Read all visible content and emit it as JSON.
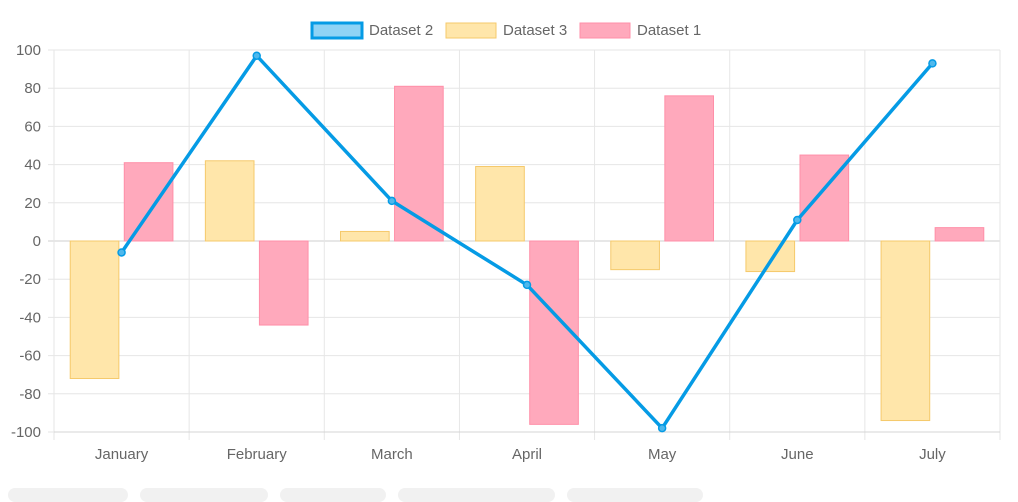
{
  "chart_data": {
    "type": "bar",
    "categories": [
      "January",
      "February",
      "March",
      "April",
      "May",
      "June",
      "July"
    ],
    "series": [
      {
        "name": "Dataset 2",
        "type": "line",
        "color": "#059BE5",
        "values": [
          -6,
          97,
          21,
          -23,
          -98,
          11,
          93
        ]
      },
      {
        "name": "Dataset 3",
        "type": "bar",
        "color": "#FFE6AA",
        "border": "#F5C96B",
        "values": [
          -72,
          42,
          5,
          39,
          -15,
          -16,
          -94
        ]
      },
      {
        "name": "Dataset 1",
        "type": "bar",
        "color": "#FFA9BC",
        "border": "#FF8FA8",
        "values": [
          41,
          -44,
          81,
          -96,
          76,
          45,
          7
        ]
      }
    ],
    "ylim": [
      -100,
      100
    ],
    "yticks": [
      "100",
      "80",
      "60",
      "40",
      "20",
      "0",
      "-20",
      "-40",
      "-60",
      "-80",
      "-100"
    ],
    "grid": true,
    "legend": "top-center"
  }
}
